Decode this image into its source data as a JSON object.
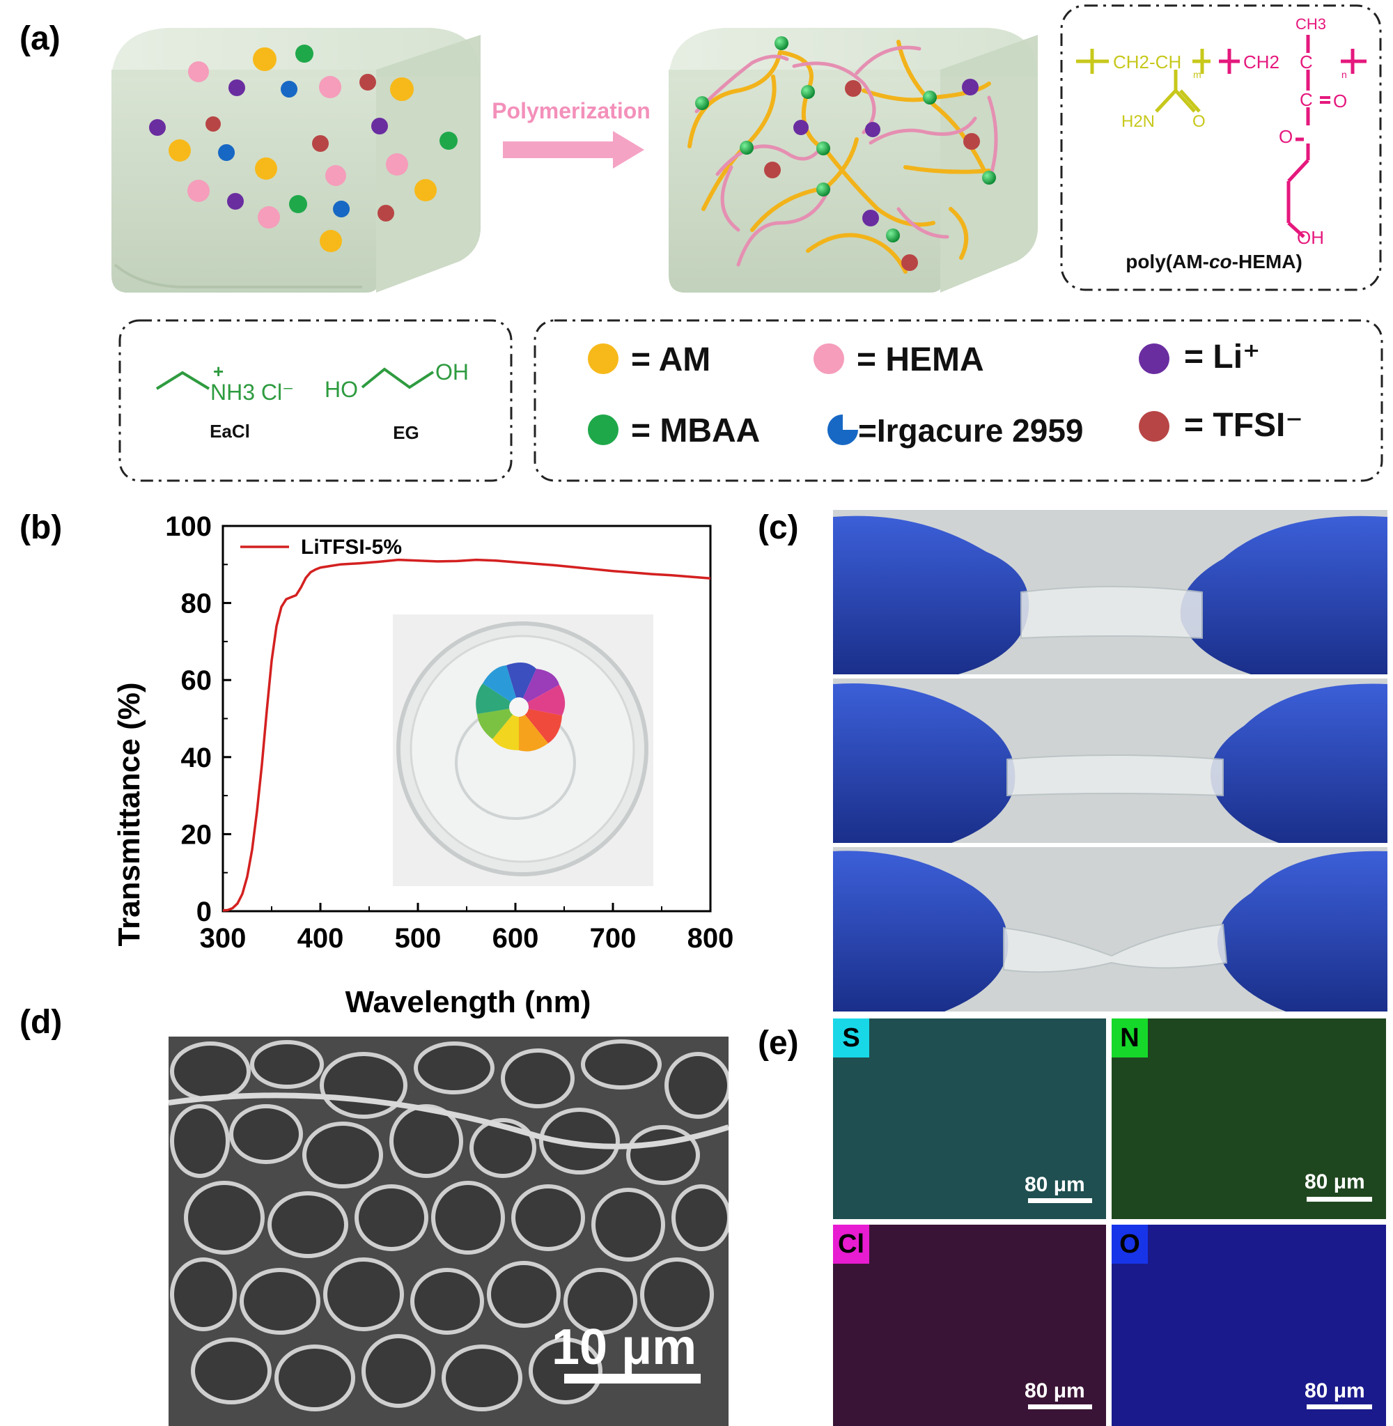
{
  "panels": {
    "a": "(a)",
    "b": "(b)",
    "c": "(c)",
    "d": "(d)",
    "e": "(e)"
  },
  "scheme": {
    "arrow_label": "Polymerization",
    "copolymer_name_pre": "poly(AM-",
    "copolymer_name_italic": "co",
    "copolymer_name_post": "-HEMA)",
    "structure_labels": {
      "ch3": "CH3",
      "ch2_ch": "CH2-CH",
      "ch2": "CH2",
      "h2n": "H2N",
      "o1": "O",
      "o2": "O",
      "o3": "O",
      "oh": "OH",
      "c": "C",
      "m": "m",
      "n": "n"
    },
    "small_molecules": [
      {
        "formula": "NH3 Cl⁻",
        "plus": "+",
        "name": "EaCl"
      },
      {
        "formula_left": "HO",
        "formula_right": "OH",
        "name": "EG"
      }
    ],
    "legend": [
      {
        "symbol": "AM",
        "label": "= AM",
        "color": "#f7b91a"
      },
      {
        "symbol": "HEMA",
        "label": "= HEMA",
        "color": "#f59dbb"
      },
      {
        "symbol": "Li",
        "label": "= Li⁺",
        "color": "#6a2da0"
      },
      {
        "symbol": "MBAA",
        "label": "= MBAA",
        "color": "#1fa84a"
      },
      {
        "symbol": "Irgacure",
        "label": "=Irgacure 2959",
        "color": "#1768c4"
      },
      {
        "symbol": "TFSI",
        "label": "= TFSI⁻",
        "color": "#b84545"
      }
    ],
    "colors": {
      "copolymer_am": "#c7c81b",
      "copolymer_hema": "#e5187d",
      "small_mol": "#2e9b3f",
      "arrow": "#f5a3c5"
    }
  },
  "chart_data": {
    "type": "line",
    "xlabel": "Wavelength (nm)",
    "ylabel": "Transmittance (%)",
    "xlim": [
      300,
      800
    ],
    "ylim": [
      0,
      100
    ],
    "xticks": [
      300,
      400,
      500,
      600,
      700,
      800
    ],
    "yticks": [
      0,
      20,
      40,
      60,
      80,
      100
    ],
    "grid": false,
    "legend_position": "top-left",
    "series": [
      {
        "name": "LiTFSI-5%",
        "color": "#d42020",
        "x": [
          300,
          305,
          310,
          315,
          320,
          325,
          330,
          335,
          340,
          345,
          350,
          355,
          360,
          365,
          370,
          375,
          380,
          385,
          390,
          395,
          400,
          410,
          420,
          440,
          460,
          480,
          500,
          520,
          540,
          560,
          580,
          600,
          620,
          640,
          660,
          680,
          700,
          720,
          740,
          760,
          780,
          800
        ],
        "y": [
          0.2,
          0.3,
          0.8,
          2,
          4.5,
          9,
          16,
          26,
          38,
          52,
          65,
          74,
          79,
          81,
          81.5,
          82,
          84,
          86.5,
          88,
          88.7,
          89.2,
          89.6,
          90,
          90.3,
          90.7,
          91.2,
          91,
          90.8,
          90.9,
          91.2,
          91,
          90.6,
          90.2,
          89.8,
          89.3,
          88.8,
          88.3,
          87.9,
          87.5,
          87.2,
          86.8,
          86.4
        ]
      }
    ]
  },
  "sem": {
    "scalebar": "10 μm"
  },
  "edx": [
    {
      "element": "S",
      "scalebar": "80 μm",
      "badge_color": "#18d8e8",
      "map_color": "#1f7c7c"
    },
    {
      "element": "N",
      "scalebar": "80 μm",
      "badge_color": "#16d82a",
      "map_color": "#1f6e1f"
    },
    {
      "element": "Cl",
      "scalebar": "80 μm",
      "badge_color": "#e81cd1",
      "map_color": "#6a1a5e"
    },
    {
      "element": "O",
      "scalebar": "80 μm",
      "badge_color": "#1734e8",
      "map_color": "#1e1eaa"
    }
  ]
}
